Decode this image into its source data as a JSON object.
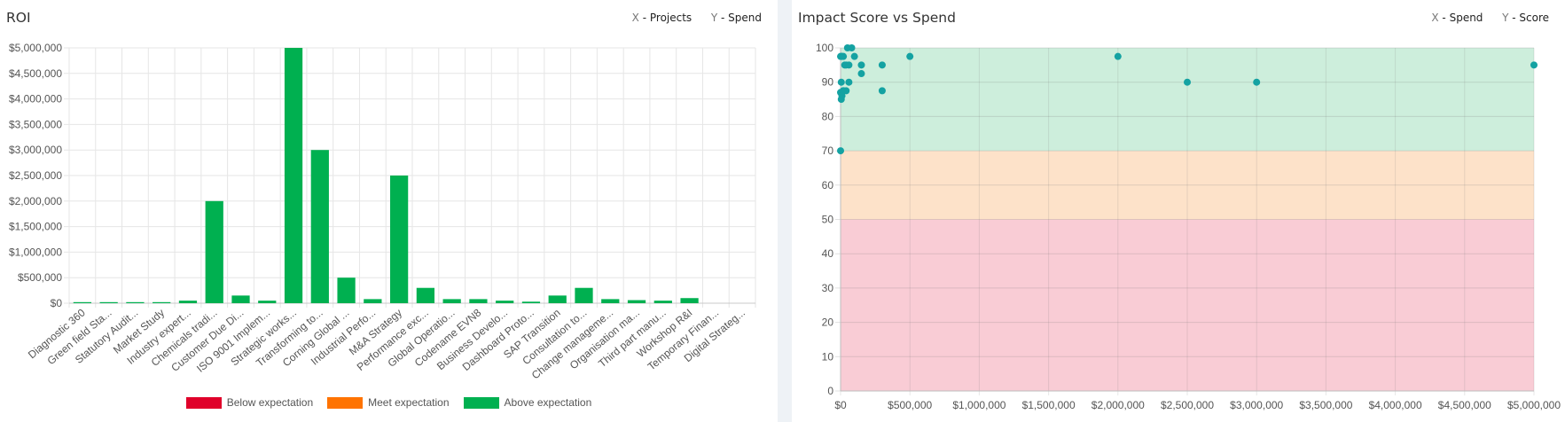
{
  "roi": {
    "title": "ROI",
    "axis_key": {
      "x_key": "X",
      "x_label": "Projects",
      "y_key": "Y",
      "y_label": "Spend"
    },
    "legend": [
      {
        "label": "Below expectation",
        "color": "#e0002a"
      },
      {
        "label": "Meet expectation",
        "color": "#ff7300"
      },
      {
        "label": "Above expectation",
        "color": "#00b050"
      }
    ]
  },
  "impact": {
    "title": "Impact Score vs Spend",
    "axis_key": {
      "x_key": "X",
      "x_label": "Spend",
      "y_key": "Y",
      "y_label": "Score"
    }
  },
  "chart_data": [
    {
      "type": "bar",
      "title": "ROI",
      "xlabel": "Projects",
      "ylabel": "Spend",
      "ylim": [
        0,
        5000000
      ],
      "yticks": [
        "$0",
        "$500,000",
        "$1,000,000",
        "$1,500,000",
        "$2,000,000",
        "$2,500,000",
        "$3,000,000",
        "$3,500,000",
        "$4,000,000",
        "$4,500,000",
        "$5,000,000"
      ],
      "ytick_values": [
        0,
        500000,
        1000000,
        1500000,
        2000000,
        2500000,
        3000000,
        3500000,
        4000000,
        4500000,
        5000000
      ],
      "grid": true,
      "bar_color": "#00b050",
      "categories": [
        "Diagnostic 360",
        "Green field Sta...",
        "Statutory Audit...",
        "Market Study",
        "Industry expert...",
        "Chemicals tradi...",
        "Customer Due Di...",
        "ISO 9001 Implem...",
        "Strategic works...",
        "Transforming to...",
        "Corning Global ...",
        "Industrial Perfo...",
        "M&A Strategy",
        "Performance exc...",
        "Global Operatio...",
        "Codename EVN8",
        "Business Develo...",
        "Dashboard Proto...",
        "SAP Transition",
        "Consultation to...",
        "Change manageme...",
        "Organisation ma...",
        "Third part manu...",
        "Workshop R&I",
        "Temporary Finan...",
        "Digital Strateg..."
      ],
      "values": [
        5000,
        5000,
        10000,
        5000,
        50000,
        2000000,
        150000,
        50000,
        5000000,
        3000000,
        500000,
        80000,
        2500000,
        300000,
        80000,
        80000,
        50000,
        30000,
        150000,
        300000,
        80000,
        60000,
        50000,
        100000,
        0,
        0
      ],
      "legend": [
        "Below expectation",
        "Meet expectation",
        "Above expectation"
      ],
      "legend_position": "bottom"
    },
    {
      "type": "scatter",
      "title": "Impact Score vs Spend",
      "xlabel": "Spend",
      "ylabel": "Score",
      "xlim": [
        0,
        5000000
      ],
      "ylim": [
        0,
        100
      ],
      "xticks": [
        "$0",
        "$500,000",
        "$1,000,000",
        "$1,500,000",
        "$2,000,000",
        "$2,500,000",
        "$3,000,000",
        "$3,500,000",
        "$4,000,000",
        "$4,500,000",
        "$5,000,000"
      ],
      "xtick_values": [
        0,
        500000,
        1000000,
        1500000,
        2000000,
        2500000,
        3000000,
        3500000,
        4000000,
        4500000,
        5000000
      ],
      "yticks": [
        "0",
        "10",
        "20",
        "30",
        "40",
        "50",
        "60",
        "70",
        "80",
        "90",
        "100"
      ],
      "ytick_values": [
        0,
        10,
        20,
        30,
        40,
        50,
        60,
        70,
        80,
        90,
        100
      ],
      "grid": true,
      "point_color": "#14a2a2",
      "bands": [
        {
          "from": 0,
          "to": 50,
          "color": "#f9ccd5"
        },
        {
          "from": 50,
          "to": 70,
          "color": "#fde2c9"
        },
        {
          "from": 70,
          "to": 100,
          "color": "#cdeedc"
        }
      ],
      "x": [
        0,
        5000,
        10000,
        20000,
        50000,
        80000,
        100000,
        30000,
        60000,
        0,
        5000,
        20000,
        40000,
        60000,
        150000,
        300000,
        500000,
        5000,
        20000,
        40000,
        150000,
        300000,
        2000000,
        2500000,
        3000000,
        5000000,
        10000,
        0
      ],
      "y": [
        97.5,
        97.5,
        97.5,
        97.5,
        100,
        100,
        97.5,
        95,
        95,
        87,
        90,
        87.5,
        87.5,
        90,
        92.5,
        95,
        97.5,
        85,
        87.5,
        95,
        95,
        87.5,
        97.5,
        90,
        90,
        95,
        86,
        70
      ]
    }
  ]
}
